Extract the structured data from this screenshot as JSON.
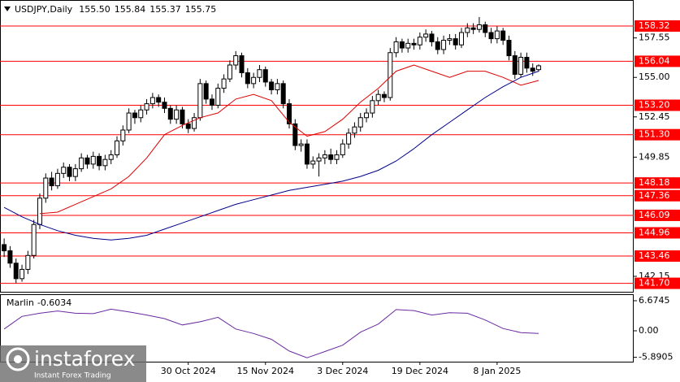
{
  "chart_data": {
    "type": "candlestick",
    "title": "USDJPY,Daily",
    "title_values": [
      {
        "value": 155.5,
        "label": "155.50"
      },
      {
        "value": 155.84,
        "label": "155.84"
      },
      {
        "value": 155.37,
        "label": "155.37"
      },
      {
        "value": 155.75,
        "label": "155.75"
      }
    ],
    "up_color": "#ffffff",
    "down_color": "#000000",
    "ohlc": [
      [
        144.2,
        144.6,
        143.4,
        143.8
      ],
      [
        143.8,
        144.1,
        142.7,
        143.0
      ],
      [
        143.0,
        143.3,
        141.7,
        142.0
      ],
      [
        142.0,
        142.9,
        141.8,
        142.6
      ],
      [
        142.6,
        143.8,
        142.3,
        143.5
      ],
      [
        143.5,
        145.8,
        143.3,
        145.5
      ],
      [
        145.5,
        147.5,
        145.2,
        147.2
      ],
      [
        147.2,
        148.8,
        146.9,
        148.5
      ],
      [
        148.5,
        148.9,
        147.7,
        148.0
      ],
      [
        148.0,
        149.1,
        147.8,
        148.8
      ],
      [
        148.8,
        149.5,
        148.5,
        149.2
      ],
      [
        149.2,
        149.4,
        148.3,
        148.6
      ],
      [
        148.6,
        149.4,
        148.3,
        149.1
      ],
      [
        149.1,
        150.1,
        148.9,
        149.8
      ],
      [
        149.8,
        150.0,
        149.1,
        149.4
      ],
      [
        149.4,
        150.2,
        149.1,
        149.9
      ],
      [
        149.9,
        150.1,
        149.0,
        149.3
      ],
      [
        149.3,
        150.0,
        149.0,
        149.7
      ],
      [
        149.7,
        150.3,
        149.4,
        150.0
      ],
      [
        150.0,
        151.2,
        149.8,
        150.9
      ],
      [
        150.9,
        151.9,
        150.6,
        151.6
      ],
      [
        151.6,
        153.0,
        151.4,
        152.7
      ],
      [
        152.7,
        152.9,
        152.0,
        152.4
      ],
      [
        152.4,
        153.2,
        152.1,
        152.9
      ],
      [
        152.9,
        153.6,
        152.6,
        153.3
      ],
      [
        153.3,
        154.0,
        153.0,
        153.7
      ],
      [
        153.7,
        153.9,
        153.1,
        153.4
      ],
      [
        153.4,
        153.7,
        152.7,
        153.0
      ],
      [
        153.0,
        153.2,
        152.0,
        152.3
      ],
      [
        152.3,
        153.2,
        152.0,
        152.9
      ],
      [
        152.9,
        153.1,
        151.7,
        152.0
      ],
      [
        152.0,
        152.3,
        151.4,
        151.7
      ],
      [
        151.7,
        152.7,
        151.5,
        152.4
      ],
      [
        152.4,
        154.9,
        152.2,
        154.6
      ],
      [
        154.6,
        154.8,
        153.3,
        153.6
      ],
      [
        153.6,
        153.9,
        152.9,
        153.2
      ],
      [
        153.2,
        154.6,
        153.0,
        154.3
      ],
      [
        154.3,
        155.2,
        154.0,
        154.9
      ],
      [
        154.9,
        156.1,
        154.7,
        155.8
      ],
      [
        155.8,
        156.7,
        155.5,
        156.4
      ],
      [
        156.4,
        156.6,
        155.0,
        155.3
      ],
      [
        155.3,
        155.6,
        154.3,
        154.6
      ],
      [
        154.6,
        155.3,
        154.3,
        155.0
      ],
      [
        155.0,
        155.8,
        154.7,
        155.5
      ],
      [
        155.5,
        155.7,
        154.4,
        154.7
      ],
      [
        154.7,
        154.9,
        153.9,
        154.2
      ],
      [
        154.2,
        154.9,
        153.9,
        154.6
      ],
      [
        154.6,
        154.8,
        153.0,
        153.3
      ],
      [
        153.3,
        153.6,
        151.7,
        152.0
      ],
      [
        152.0,
        152.3,
        150.3,
        150.6
      ],
      [
        150.6,
        151.0,
        150.2,
        150.7
      ],
      [
        150.7,
        151.0,
        149.1,
        149.4
      ],
      [
        149.4,
        149.9,
        149.1,
        149.6
      ],
      [
        149.6,
        150.1,
        148.6,
        149.8
      ],
      [
        149.8,
        150.3,
        149.4,
        150.0
      ],
      [
        150.0,
        150.4,
        149.4,
        149.7
      ],
      [
        149.7,
        150.3,
        149.4,
        150.0
      ],
      [
        150.0,
        151.0,
        149.8,
        150.7
      ],
      [
        150.7,
        151.7,
        150.4,
        151.4
      ],
      [
        151.4,
        152.1,
        151.1,
        151.8
      ],
      [
        151.8,
        152.7,
        151.5,
        152.4
      ],
      [
        152.4,
        153.0,
        152.1,
        152.7
      ],
      [
        152.7,
        153.8,
        152.4,
        153.5
      ],
      [
        153.5,
        154.2,
        153.2,
        153.9
      ],
      [
        153.9,
        154.1,
        153.4,
        153.7
      ],
      [
        153.7,
        156.9,
        153.5,
        156.6
      ],
      [
        156.6,
        157.6,
        156.3,
        157.3
      ],
      [
        157.3,
        157.5,
        156.6,
        156.9
      ],
      [
        156.9,
        157.5,
        156.6,
        157.2
      ],
      [
        157.2,
        157.5,
        156.8,
        157.1
      ],
      [
        157.1,
        157.9,
        156.8,
        157.6
      ],
      [
        157.6,
        158.1,
        157.3,
        157.8
      ],
      [
        157.8,
        158.0,
        157.0,
        157.3
      ],
      [
        157.3,
        157.6,
        156.5,
        156.8
      ],
      [
        156.8,
        157.7,
        156.5,
        157.4
      ],
      [
        157.4,
        157.8,
        157.1,
        157.5
      ],
      [
        157.5,
        157.8,
        156.8,
        157.1
      ],
      [
        157.1,
        158.2,
        156.9,
        157.9
      ],
      [
        157.9,
        158.5,
        157.6,
        158.2
      ],
      [
        158.2,
        158.5,
        157.8,
        158.1
      ],
      [
        158.1,
        158.9,
        157.9,
        158.4
      ],
      [
        158.4,
        158.6,
        157.6,
        157.9
      ],
      [
        157.9,
        158.2,
        157.2,
        157.5
      ],
      [
        157.5,
        158.3,
        157.2,
        158.0
      ],
      [
        158.0,
        158.2,
        157.1,
        157.4
      ],
      [
        157.4,
        157.7,
        156.1,
        156.4
      ],
      [
        156.4,
        156.7,
        154.9,
        155.2
      ],
      [
        155.2,
        156.6,
        155.0,
        156.3
      ],
      [
        156.3,
        156.6,
        155.3,
        155.6
      ],
      [
        155.6,
        155.9,
        155.1,
        155.4
      ],
      [
        155.5,
        155.84,
        155.37,
        155.75
      ]
    ],
    "xlim": [
      -0.7,
      106
    ],
    "xticks": [
      {
        "value": 31,
        "label": "30 Oct 2024"
      },
      {
        "value": 44,
        "label": "15 Nov 2024"
      },
      {
        "value": 57,
        "label": "3 Dec 2024"
      },
      {
        "value": 70,
        "label": "19 Dec 2024"
      },
      {
        "value": 83,
        "label": "8 Jan 2025"
      }
    ],
    "ylim": [
      141.1,
      160.0
    ],
    "yticks": [
      157.55,
      {
        "value": 155,
        "label": "155.00"
      },
      152.45,
      149.85,
      142.15
    ],
    "level_color": "#ff0000",
    "levels": [
      158.32,
      156.04,
      {
        "value": 153.2,
        "label": "153.20"
      },
      {
        "value": 151.3,
        "label": "151.30"
      },
      148.18,
      147.36,
      146.09,
      144.96,
      143.46,
      {
        "value": 141.7,
        "label": "141.70"
      }
    ],
    "series": [
      {
        "color": "#e00000",
        "x": [
          6,
          9,
          12,
          15,
          18,
          21,
          24,
          27,
          30,
          33,
          36,
          39,
          42,
          45,
          48,
          51,
          54,
          57,
          60,
          63,
          66,
          69,
          72,
          75,
          78,
          81,
          84,
          87,
          90
        ],
        "values": [
          146.2,
          146.3,
          146.8,
          147.3,
          147.8,
          148.6,
          149.8,
          151.3,
          151.9,
          152.4,
          152.7,
          153.6,
          153.9,
          153.5,
          152.1,
          151.2,
          151.5,
          152.3,
          153.4,
          154.3,
          155.4,
          155.8,
          155.4,
          155.0,
          155.4,
          155.4,
          155.0,
          154.5,
          154.8
        ]
      },
      {
        "color": "#00008b",
        "x": [
          0,
          3,
          6,
          9,
          12,
          15,
          18,
          21,
          24,
          27,
          30,
          33,
          36,
          39,
          42,
          45,
          48,
          51,
          54,
          57,
          60,
          63,
          66,
          69,
          72,
          75,
          78,
          81,
          84,
          87,
          90
        ],
        "values": [
          146.6,
          146.0,
          145.5,
          145.1,
          144.8,
          144.6,
          144.5,
          144.6,
          144.8,
          145.2,
          145.6,
          146.0,
          146.4,
          146.8,
          147.1,
          147.4,
          147.7,
          147.9,
          148.1,
          148.3,
          148.6,
          149.0,
          149.6,
          150.4,
          151.3,
          152.1,
          152.9,
          153.7,
          154.4,
          155.0,
          155.4
        ]
      }
    ],
    "indicator": {
      "name": "Marlin",
      "color": "#6a2aa0",
      "ylim": [
        -6.86,
        8.12
      ],
      "yticks": [
        6.6745,
        {
          "value": 0,
          "label": "0.00"
        },
        -5.8905
      ],
      "x": [
        0,
        3,
        6,
        9,
        12,
        15,
        18,
        21,
        24,
        27,
        30,
        33,
        36,
        39,
        42,
        45,
        48,
        51,
        54,
        57,
        60,
        63,
        66,
        69,
        72,
        75,
        78,
        81,
        84,
        87,
        90
      ],
      "values": [
        0.4,
        3.2,
        3.9,
        4.4,
        3.9,
        3.8,
        4.8,
        4.2,
        3.5,
        2.7,
        1.3,
        2.0,
        3.0,
        0.4,
        -0.6,
        -1.9,
        -4.5,
        -6.0,
        -4.6,
        -3.2,
        -0.3,
        1.5,
        4.7,
        4.5,
        3.5,
        4.0,
        3.9,
        2.4,
        0.5,
        -0.4,
        -0.6034
      ]
    },
    "brand": "instaforex",
    "tagline": "Instant Forex Trading"
  }
}
